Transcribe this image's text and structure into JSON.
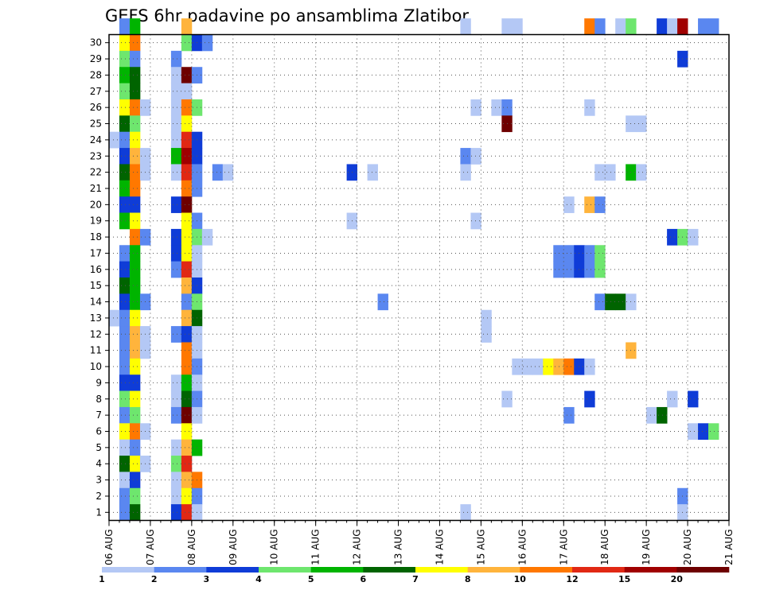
{
  "chart_data": {
    "type": "heatmap",
    "title": "GEFS 6hr padavine po ansamblima Zlatibor",
    "xlabel": "",
    "ylabel": "",
    "x_ticks": [
      "06 AUG",
      "07 AUG",
      "08 AUG",
      "09 AUG",
      "10 AUG",
      "11 AUG",
      "12 AUG",
      "13 AUG",
      "14 AUG",
      "15 AUG",
      "16 AUG",
      "17 AUG",
      "18 AUG",
      "19 AUG",
      "20 AUG",
      "21 AUG"
    ],
    "y_ticks": [
      "1",
      "2",
      "3",
      "4",
      "5",
      "6",
      "7",
      "8",
      "9",
      "10",
      "11",
      "12",
      "13",
      "14",
      "15",
      "16",
      "17",
      "18",
      "19",
      "20",
      "21",
      "22",
      "23",
      "24",
      "25",
      "26",
      "27",
      "28",
      "29",
      "30"
    ],
    "grid": true,
    "colorbar": {
      "bounds": [
        "1",
        "2",
        "3",
        "4",
        "5",
        "6",
        "7",
        "8",
        "10",
        "12",
        "15",
        "20"
      ],
      "colors": [
        "#b4c8f5",
        "#5a87f0",
        "#0f3cd7",
        "#6ee66e",
        "#00b400",
        "#006400",
        "#ffff00",
        "#ffb43c",
        "#ff7800",
        "#e12814",
        "#a00000",
        "#6e0000"
      ]
    },
    "cells": [
      {
        "m": 30,
        "s": 1,
        "c": 2
      },
      {
        "m": 30,
        "s": 2,
        "c": 5
      },
      {
        "m": 30,
        "s": 7,
        "c": 8
      },
      {
        "m": 30,
        "s": 34,
        "c": 1
      },
      {
        "m": 30,
        "s": 38,
        "c": 1
      },
      {
        "m": 30,
        "s": 39,
        "c": 1
      },
      {
        "m": 30,
        "s": 46,
        "c": 9
      },
      {
        "m": 30,
        "s": 47,
        "c": 2
      },
      {
        "m": 30,
        "s": 49,
        "c": 1
      },
      {
        "m": 30,
        "s": 50,
        "c": 4
      },
      {
        "m": 30,
        "s": 53,
        "c": 3
      },
      {
        "m": 30,
        "s": 54,
        "c": 1
      },
      {
        "m": 30,
        "s": 55,
        "c": 11
      },
      {
        "m": 30,
        "s": 57,
        "c": 2
      },
      {
        "m": 30,
        "s": 58,
        "c": 2
      },
      {
        "m": 29,
        "s": 1,
        "c": 7
      },
      {
        "m": 29,
        "s": 2,
        "c": 9
      },
      {
        "m": 29,
        "s": 7,
        "c": 4
      },
      {
        "m": 29,
        "s": 8,
        "c": 3
      },
      {
        "m": 29,
        "s": 9,
        "c": 2
      },
      {
        "m": 28,
        "s": 1,
        "c": 4
      },
      {
        "m": 28,
        "s": 2,
        "c": 2
      },
      {
        "m": 28,
        "s": 6,
        "c": 2
      },
      {
        "m": 28,
        "s": 55,
        "c": 3
      },
      {
        "m": 27,
        "s": 1,
        "c": 5
      },
      {
        "m": 27,
        "s": 2,
        "c": 6
      },
      {
        "m": 27,
        "s": 6,
        "c": 1
      },
      {
        "m": 27,
        "s": 7,
        "c": 12
      },
      {
        "m": 27,
        "s": 8,
        "c": 2
      },
      {
        "m": 26,
        "s": 1,
        "c": 4
      },
      {
        "m": 26,
        "s": 2,
        "c": 6
      },
      {
        "m": 26,
        "s": 6,
        "c": 1
      },
      {
        "m": 26,
        "s": 7,
        "c": 1
      },
      {
        "m": 25,
        "s": 1,
        "c": 7
      },
      {
        "m": 25,
        "s": 2,
        "c": 9
      },
      {
        "m": 25,
        "s": 3,
        "c": 1
      },
      {
        "m": 25,
        "s": 6,
        "c": 1
      },
      {
        "m": 25,
        "s": 7,
        "c": 9
      },
      {
        "m": 25,
        "s": 8,
        "c": 4
      },
      {
        "m": 25,
        "s": 35,
        "c": 1
      },
      {
        "m": 25,
        "s": 37,
        "c": 1
      },
      {
        "m": 25,
        "s": 38,
        "c": 2
      },
      {
        "m": 25,
        "s": 46,
        "c": 1
      },
      {
        "m": 24,
        "s": 1,
        "c": 6
      },
      {
        "m": 24,
        "s": 2,
        "c": 4
      },
      {
        "m": 24,
        "s": 6,
        "c": 1
      },
      {
        "m": 24,
        "s": 7,
        "c": 7
      },
      {
        "m": 24,
        "s": 38,
        "c": 12
      },
      {
        "m": 24,
        "s": 50,
        "c": 1
      },
      {
        "m": 24,
        "s": 51,
        "c": 1
      },
      {
        "m": 23,
        "s": 0,
        "c": 1
      },
      {
        "m": 23,
        "s": 1,
        "c": 2
      },
      {
        "m": 23,
        "s": 2,
        "c": 7
      },
      {
        "m": 23,
        "s": 6,
        "c": 1
      },
      {
        "m": 23,
        "s": 7,
        "c": 10
      },
      {
        "m": 23,
        "s": 8,
        "c": 3
      },
      {
        "m": 22,
        "s": 1,
        "c": 3
      },
      {
        "m": 22,
        "s": 2,
        "c": 8
      },
      {
        "m": 22,
        "s": 3,
        "c": 1
      },
      {
        "m": 22,
        "s": 6,
        "c": 5
      },
      {
        "m": 22,
        "s": 7,
        "c": 11
      },
      {
        "m": 22,
        "s": 8,
        "c": 3
      },
      {
        "m": 22,
        "s": 34,
        "c": 2
      },
      {
        "m": 22,
        "s": 35,
        "c": 1
      },
      {
        "m": 21,
        "s": 1,
        "c": 6
      },
      {
        "m": 21,
        "s": 2,
        "c": 9
      },
      {
        "m": 21,
        "s": 3,
        "c": 1
      },
      {
        "m": 21,
        "s": 6,
        "c": 1
      },
      {
        "m": 21,
        "s": 7,
        "c": 10
      },
      {
        "m": 21,
        "s": 8,
        "c": 2
      },
      {
        "m": 21,
        "s": 10,
        "c": 2
      },
      {
        "m": 21,
        "s": 11,
        "c": 1
      },
      {
        "m": 21,
        "s": 23,
        "c": 3
      },
      {
        "m": 21,
        "s": 25,
        "c": 1
      },
      {
        "m": 21,
        "s": 34,
        "c": 1
      },
      {
        "m": 21,
        "s": 47,
        "c": 1
      },
      {
        "m": 21,
        "s": 48,
        "c": 1
      },
      {
        "m": 21,
        "s": 50,
        "c": 5
      },
      {
        "m": 21,
        "s": 51,
        "c": 1
      },
      {
        "m": 20,
        "s": 1,
        "c": 5
      },
      {
        "m": 20,
        "s": 2,
        "c": 9
      },
      {
        "m": 20,
        "s": 7,
        "c": 9
      },
      {
        "m": 20,
        "s": 8,
        "c": 2
      },
      {
        "m": 19,
        "s": 1,
        "c": 3
      },
      {
        "m": 19,
        "s": 2,
        "c": 3
      },
      {
        "m": 19,
        "s": 6,
        "c": 3
      },
      {
        "m": 19,
        "s": 7,
        "c": 12
      },
      {
        "m": 19,
        "s": 44,
        "c": 1
      },
      {
        "m": 19,
        "s": 46,
        "c": 8
      },
      {
        "m": 19,
        "s": 47,
        "c": 2
      },
      {
        "m": 18,
        "s": 1,
        "c": 5
      },
      {
        "m": 18,
        "s": 2,
        "c": 7
      },
      {
        "m": 18,
        "s": 7,
        "c": 7
      },
      {
        "m": 18,
        "s": 8,
        "c": 2
      },
      {
        "m": 18,
        "s": 23,
        "c": 1
      },
      {
        "m": 18,
        "s": 35,
        "c": 1
      },
      {
        "m": 17,
        "s": 2,
        "c": 9
      },
      {
        "m": 17,
        "s": 3,
        "c": 2
      },
      {
        "m": 17,
        "s": 6,
        "c": 3
      },
      {
        "m": 17,
        "s": 7,
        "c": 7
      },
      {
        "m": 17,
        "s": 8,
        "c": 4
      },
      {
        "m": 17,
        "s": 9,
        "c": 1
      },
      {
        "m": 17,
        "s": 54,
        "c": 3
      },
      {
        "m": 17,
        "s": 55,
        "c": 4
      },
      {
        "m": 17,
        "s": 56,
        "c": 1
      },
      {
        "m": 16,
        "s": 1,
        "c": 2
      },
      {
        "m": 16,
        "s": 2,
        "c": 5
      },
      {
        "m": 16,
        "s": 6,
        "c": 3
      },
      {
        "m": 16,
        "s": 7,
        "c": 7
      },
      {
        "m": 16,
        "s": 8,
        "c": 1
      },
      {
        "m": 16,
        "s": 43,
        "c": 2
      },
      {
        "m": 16,
        "s": 44,
        "c": 2
      },
      {
        "m": 16,
        "s": 45,
        "c": 3
      },
      {
        "m": 16,
        "s": 46,
        "c": 2
      },
      {
        "m": 16,
        "s": 47,
        "c": 4
      },
      {
        "m": 15,
        "s": 1,
        "c": 3
      },
      {
        "m": 15,
        "s": 2,
        "c": 5
      },
      {
        "m": 15,
        "s": 6,
        "c": 2
      },
      {
        "m": 15,
        "s": 7,
        "c": 10
      },
      {
        "m": 15,
        "s": 8,
        "c": 1
      },
      {
        "m": 15,
        "s": 43,
        "c": 2
      },
      {
        "m": 15,
        "s": 44,
        "c": 2
      },
      {
        "m": 15,
        "s": 45,
        "c": 3
      },
      {
        "m": 15,
        "s": 46,
        "c": 2
      },
      {
        "m": 15,
        "s": 47,
        "c": 4
      },
      {
        "m": 14,
        "s": 1,
        "c": 6
      },
      {
        "m": 14,
        "s": 2,
        "c": 5
      },
      {
        "m": 14,
        "s": 7,
        "c": 8
      },
      {
        "m": 14,
        "s": 8,
        "c": 3
      },
      {
        "m": 13,
        "s": 1,
        "c": 3
      },
      {
        "m": 13,
        "s": 2,
        "c": 5
      },
      {
        "m": 13,
        "s": 3,
        "c": 2
      },
      {
        "m": 13,
        "s": 7,
        "c": 2
      },
      {
        "m": 13,
        "s": 8,
        "c": 4
      },
      {
        "m": 13,
        "s": 26,
        "c": 2
      },
      {
        "m": 13,
        "s": 47,
        "c": 2
      },
      {
        "m": 13,
        "s": 48,
        "c": 6
      },
      {
        "m": 13,
        "s": 49,
        "c": 6
      },
      {
        "m": 13,
        "s": 50,
        "c": 1
      },
      {
        "m": 12,
        "s": 0,
        "c": 1
      },
      {
        "m": 12,
        "s": 1,
        "c": 2
      },
      {
        "m": 12,
        "s": 2,
        "c": 7
      },
      {
        "m": 12,
        "s": 7,
        "c": 8
      },
      {
        "m": 12,
        "s": 8,
        "c": 6
      },
      {
        "m": 12,
        "s": 36,
        "c": 1
      },
      {
        "m": 11,
        "s": 1,
        "c": 2
      },
      {
        "m": 11,
        "s": 2,
        "c": 8
      },
      {
        "m": 11,
        "s": 3,
        "c": 1
      },
      {
        "m": 11,
        "s": 6,
        "c": 2
      },
      {
        "m": 11,
        "s": 7,
        "c": 3
      },
      {
        "m": 11,
        "s": 8,
        "c": 1
      },
      {
        "m": 11,
        "s": 36,
        "c": 1
      },
      {
        "m": 10,
        "s": 1,
        "c": 2
      },
      {
        "m": 10,
        "s": 2,
        "c": 8
      },
      {
        "m": 10,
        "s": 3,
        "c": 1
      },
      {
        "m": 10,
        "s": 7,
        "c": 9
      },
      {
        "m": 10,
        "s": 8,
        "c": 1
      },
      {
        "m": 10,
        "s": 50,
        "c": 8
      },
      {
        "m": 9,
        "s": 1,
        "c": 2
      },
      {
        "m": 9,
        "s": 2,
        "c": 7
      },
      {
        "m": 9,
        "s": 7,
        "c": 9
      },
      {
        "m": 9,
        "s": 8,
        "c": 2
      },
      {
        "m": 9,
        "s": 39,
        "c": 1
      },
      {
        "m": 9,
        "s": 40,
        "c": 1
      },
      {
        "m": 9,
        "s": 41,
        "c": 1
      },
      {
        "m": 9,
        "s": 42,
        "c": 7
      },
      {
        "m": 9,
        "s": 43,
        "c": 8
      },
      {
        "m": 9,
        "s": 44,
        "c": 9
      },
      {
        "m": 9,
        "s": 45,
        "c": 3
      },
      {
        "m": 9,
        "s": 46,
        "c": 1
      },
      {
        "m": 8,
        "s": 1,
        "c": 3
      },
      {
        "m": 8,
        "s": 2,
        "c": 3
      },
      {
        "m": 8,
        "s": 6,
        "c": 1
      },
      {
        "m": 8,
        "s": 7,
        "c": 5
      },
      {
        "m": 8,
        "s": 8,
        "c": 1
      },
      {
        "m": 7,
        "s": 1,
        "c": 4
      },
      {
        "m": 7,
        "s": 2,
        "c": 7
      },
      {
        "m": 7,
        "s": 6,
        "c": 1
      },
      {
        "m": 7,
        "s": 7,
        "c": 6
      },
      {
        "m": 7,
        "s": 8,
        "c": 2
      },
      {
        "m": 7,
        "s": 38,
        "c": 1
      },
      {
        "m": 7,
        "s": 46,
        "c": 3
      },
      {
        "m": 7,
        "s": 54,
        "c": 1
      },
      {
        "m": 7,
        "s": 56,
        "c": 3
      },
      {
        "m": 6,
        "s": 1,
        "c": 2
      },
      {
        "m": 6,
        "s": 2,
        "c": 4
      },
      {
        "m": 6,
        "s": 6,
        "c": 2
      },
      {
        "m": 6,
        "s": 7,
        "c": 12
      },
      {
        "m": 6,
        "s": 8,
        "c": 1
      },
      {
        "m": 6,
        "s": 44,
        "c": 2
      },
      {
        "m": 6,
        "s": 52,
        "c": 1
      },
      {
        "m": 6,
        "s": 53,
        "c": 6
      },
      {
        "m": 5,
        "s": 1,
        "c": 7
      },
      {
        "m": 5,
        "s": 2,
        "c": 9
      },
      {
        "m": 5,
        "s": 3,
        "c": 1
      },
      {
        "m": 5,
        "s": 7,
        "c": 7
      },
      {
        "m": 5,
        "s": 56,
        "c": 1
      },
      {
        "m": 5,
        "s": 57,
        "c": 3
      },
      {
        "m": 5,
        "s": 58,
        "c": 4
      },
      {
        "m": 4,
        "s": 1,
        "c": 1
      },
      {
        "m": 4,
        "s": 2,
        "c": 2
      },
      {
        "m": 4,
        "s": 6,
        "c": 1
      },
      {
        "m": 4,
        "s": 7,
        "c": 8
      },
      {
        "m": 4,
        "s": 8,
        "c": 5
      },
      {
        "m": 3,
        "s": 1,
        "c": 6
      },
      {
        "m": 3,
        "s": 2,
        "c": 7
      },
      {
        "m": 3,
        "s": 3,
        "c": 1
      },
      {
        "m": 3,
        "s": 6,
        "c": 4
      },
      {
        "m": 3,
        "s": 7,
        "c": 10
      },
      {
        "m": 2,
        "s": 1,
        "c": 1
      },
      {
        "m": 2,
        "s": 2,
        "c": 3
      },
      {
        "m": 2,
        "s": 6,
        "c": 1
      },
      {
        "m": 2,
        "s": 7,
        "c": 8
      },
      {
        "m": 2,
        "s": 8,
        "c": 9
      },
      {
        "m": 1,
        "s": 1,
        "c": 2
      },
      {
        "m": 1,
        "s": 2,
        "c": 4
      },
      {
        "m": 1,
        "s": 6,
        "c": 1
      },
      {
        "m": 1,
        "s": 7,
        "c": 7
      },
      {
        "m": 1,
        "s": 8,
        "c": 2
      },
      {
        "m": 1,
        "s": 55,
        "c": 2
      },
      {
        "m": 0,
        "s": 1,
        "c": 2
      },
      {
        "m": 0,
        "s": 2,
        "c": 6
      },
      {
        "m": 0,
        "s": 6,
        "c": 3
      },
      {
        "m": 0,
        "s": 7,
        "c": 10
      },
      {
        "m": 0,
        "s": 8,
        "c": 1
      },
      {
        "m": 0,
        "s": 34,
        "c": 1
      },
      {
        "m": 0,
        "s": 55,
        "c": 1
      }
    ]
  }
}
